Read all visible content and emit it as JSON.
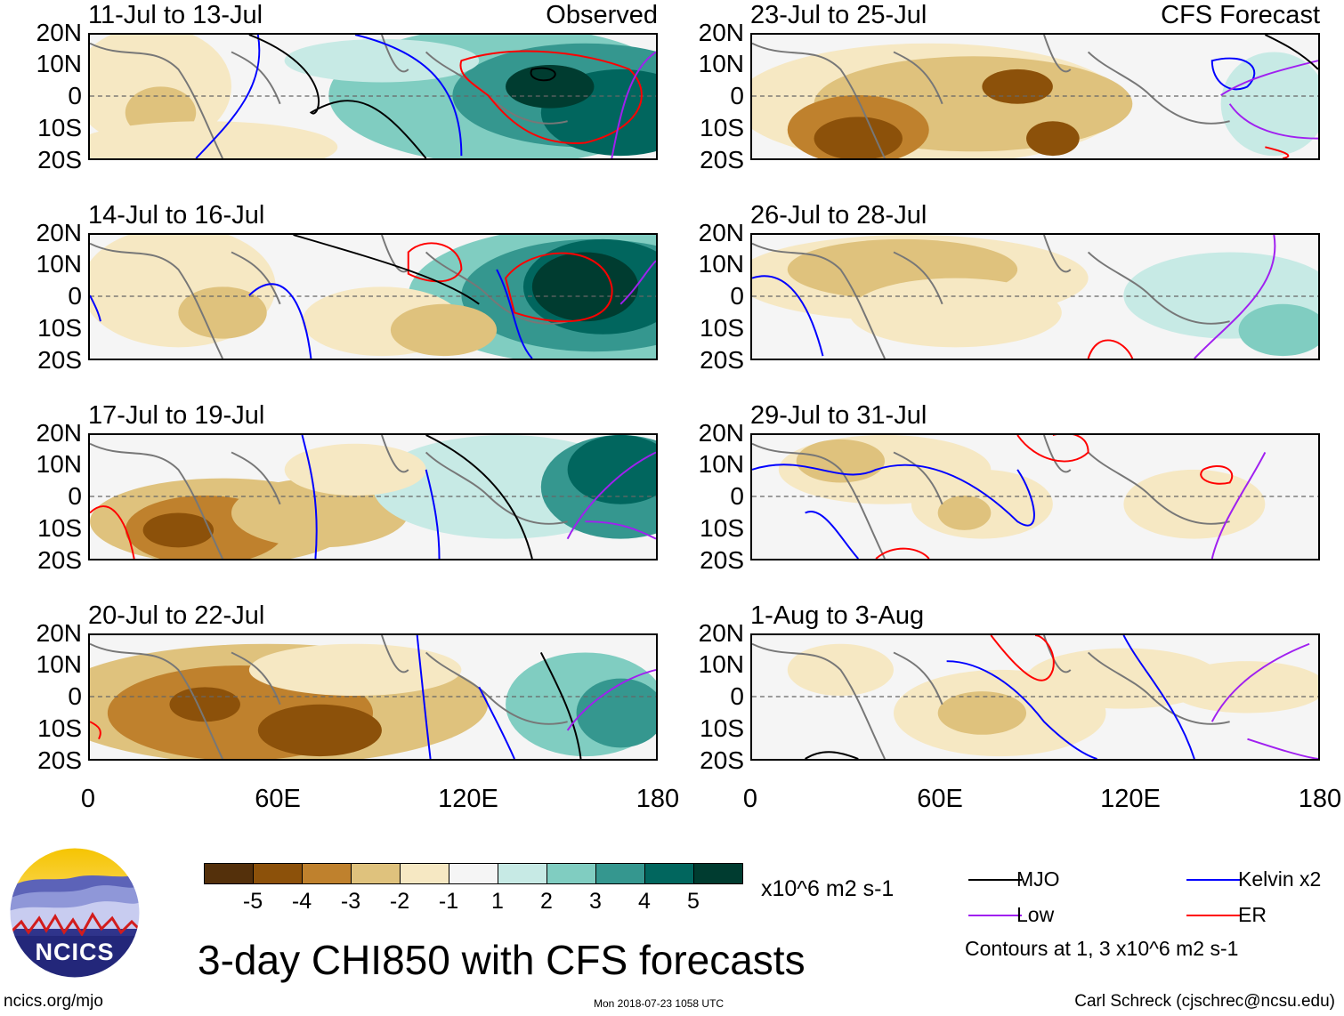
{
  "title": "3-day CHI850 with CFS forecasts",
  "site": "ncics.org/mjo",
  "timestamp": "Mon 2018-07-23 1058 UTC",
  "author": "Carl Schreck (cjschrec@ncsu.edu)",
  "logo_text": "NCICS",
  "chart_data": {
    "type": "heatmap",
    "title": "3-day CHI850 with CFS forecasts",
    "units": "x10^6 m2 s-1",
    "latitude_ticks": [
      "20N",
      "10N",
      "0",
      "10S",
      "20S"
    ],
    "longitude_ticks": [
      "0",
      "60E",
      "120E",
      "180"
    ],
    "colorbar": {
      "labels": [
        "-5",
        "-4",
        "-3",
        "-2",
        "-1",
        "1",
        "2",
        "3",
        "4",
        "5"
      ],
      "colors": [
        "#54300b",
        "#8c510a",
        "#bf812d",
        "#dfc27d",
        "#f6e8c3",
        "#f5f5f5",
        "#c7eae5",
        "#80cdc1",
        "#35978f",
        "#01665e",
        "#003c30"
      ]
    },
    "panels": [
      {
        "period": "11-Jul to 13-Jul",
        "tag": "Observed",
        "source": "observed"
      },
      {
        "period": "14-Jul to 16-Jul",
        "tag": "",
        "source": "observed"
      },
      {
        "period": "17-Jul to 19-Jul",
        "tag": "",
        "source": "observed"
      },
      {
        "period": "20-Jul to 22-Jul",
        "tag": "",
        "source": "observed"
      },
      {
        "period": "23-Jul to 25-Jul",
        "tag": "CFS Forecast",
        "source": "forecast"
      },
      {
        "period": "26-Jul to 28-Jul",
        "tag": "",
        "source": "forecast"
      },
      {
        "period": "29-Jul to 31-Jul",
        "tag": "",
        "source": "forecast"
      },
      {
        "period": "1-Aug to 3-Aug",
        "tag": "",
        "source": "forecast"
      }
    ],
    "contour_legend": [
      {
        "label": "MJO",
        "color": "#000000"
      },
      {
        "label": "Kelvin x2",
        "color": "#0000ff"
      },
      {
        "label": "Low",
        "color": "#a020f0"
      },
      {
        "label": "ER",
        "color": "#ff0000"
      }
    ],
    "contour_note": "Contours at 1, 3 x10^6 m2 s-1"
  }
}
